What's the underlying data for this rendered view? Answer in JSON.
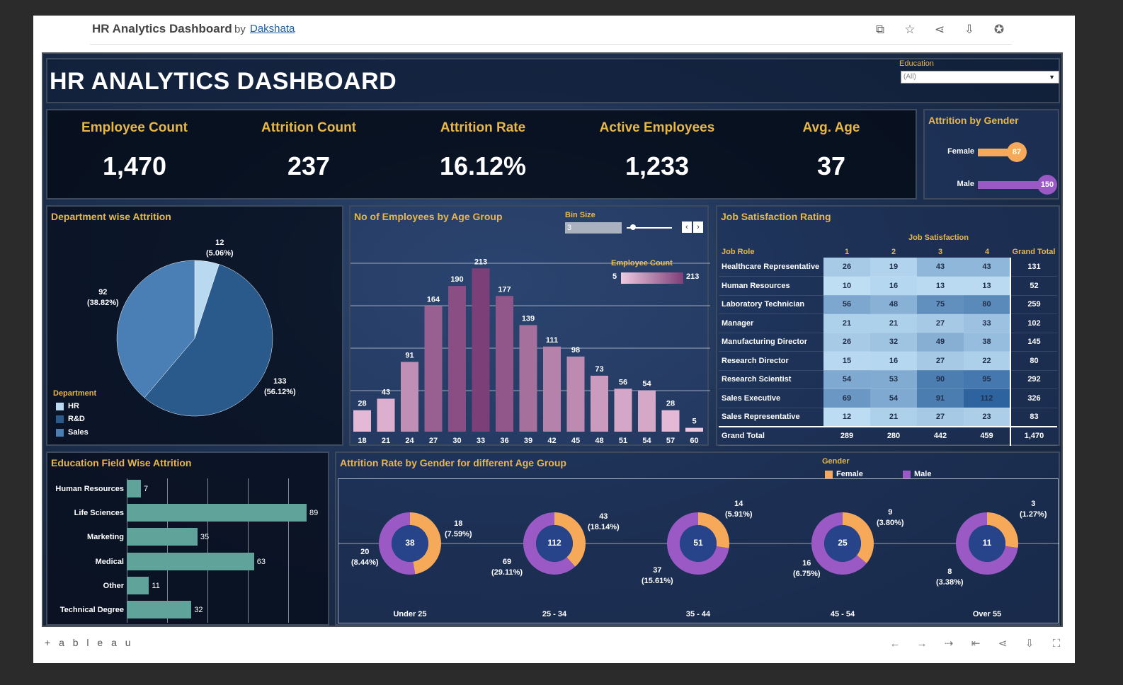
{
  "topbar": {
    "title": "HR Analytics Dashboard",
    "by": "by",
    "author": "Dakshata",
    "icons": [
      "copy-icon",
      "star-icon",
      "share-icon",
      "download-icon",
      "badge-icon"
    ]
  },
  "header": {
    "title": "HR ANALYTICS DASHBOARD",
    "education_label": "Education",
    "education_value": "(All)"
  },
  "kpis": [
    {
      "label": "Employee Count",
      "value": "1,470"
    },
    {
      "label": "Attrition Count",
      "value": "237"
    },
    {
      "label": "Attrition Rate",
      "value": "16.12%"
    },
    {
      "label": "Active Employees",
      "value": "1,233"
    },
    {
      "label": "Avg. Age",
      "value": "37"
    }
  ],
  "gender": {
    "title": "Attrition by Gender",
    "items": [
      {
        "label": "Female",
        "value": "87",
        "color": "#f7a95a"
      },
      {
        "label": "Male",
        "value": "150",
        "color": "#9b59c6"
      }
    ]
  },
  "dept": {
    "title": "Department wise Attrition",
    "legend_title": "Department",
    "legend": [
      {
        "label": "HR",
        "color": "#b8d9f0"
      },
      {
        "label": "R&D",
        "color": "#2a5a8c"
      },
      {
        "label": "Sales",
        "color": "#4a7fb5"
      }
    ],
    "labels": [
      {
        "value": "12",
        "pct": "(5.06%)"
      },
      {
        "value": "92",
        "pct": "(38.82%)"
      },
      {
        "value": "133",
        "pct": "(56.12%)"
      }
    ]
  },
  "age": {
    "title": "No of Employees by Age Group",
    "bin_label": "Bin Size",
    "bin_value": "3",
    "ec_label": "Employee Count",
    "ec_min": "5",
    "ec_max": "213"
  },
  "job": {
    "title": "Job Satisfaction Rating",
    "group_header": "Job Satisfaction",
    "columns": [
      "Job Role",
      "1",
      "2",
      "3",
      "4",
      "Grand Total"
    ],
    "rows": [
      {
        "role": "Healthcare Representative",
        "v": [
          "26",
          "19",
          "43",
          "43"
        ],
        "total": "131"
      },
      {
        "role": "Human Resources",
        "v": [
          "10",
          "16",
          "13",
          "13"
        ],
        "total": "52"
      },
      {
        "role": "Laboratory Technician",
        "v": [
          "56",
          "48",
          "75",
          "80"
        ],
        "total": "259"
      },
      {
        "role": "Manager",
        "v": [
          "21",
          "21",
          "27",
          "33"
        ],
        "total": "102"
      },
      {
        "role": "Manufacturing Director",
        "v": [
          "26",
          "32",
          "49",
          "38"
        ],
        "total": "145"
      },
      {
        "role": "Research Director",
        "v": [
          "15",
          "16",
          "27",
          "22"
        ],
        "total": "80"
      },
      {
        "role": "Research Scientist",
        "v": [
          "54",
          "53",
          "90",
          "95"
        ],
        "total": "292"
      },
      {
        "role": "Sales Executive",
        "v": [
          "69",
          "54",
          "91",
          "112"
        ],
        "total": "326"
      },
      {
        "role": "Sales Representative",
        "v": [
          "12",
          "21",
          "27",
          "23"
        ],
        "total": "83"
      }
    ],
    "grand": {
      "role": "Grand Total",
      "v": [
        "289",
        "280",
        "442",
        "459"
      ],
      "total": "1,470"
    }
  },
  "edu": {
    "title": "Education Field Wise Attrition",
    "items": [
      {
        "label": "Human Resources",
        "value": 7
      },
      {
        "label": "Life Sciences",
        "value": 89
      },
      {
        "label": "Marketing",
        "value": 35
      },
      {
        "label": "Medical",
        "value": 63
      },
      {
        "label": "Other",
        "value": 11
      },
      {
        "label": "Technical Degree",
        "value": 32
      }
    ]
  },
  "arg": {
    "title": "Attrition Rate by Gender for different Age Group",
    "legend_title": "Gender",
    "legend": [
      {
        "label": "Female",
        "color": "#f7a95a"
      },
      {
        "label": "Male",
        "color": "#9b59c6"
      }
    ],
    "groups": [
      {
        "label": "Under 25",
        "total": "38",
        "f": "18",
        "fp": "(7.59%)",
        "m": "20",
        "mp": "(8.44%)"
      },
      {
        "label": "25 - 34",
        "total": "112",
        "f": "43",
        "fp": "(18.14%)",
        "m": "69",
        "mp": "(29.11%)"
      },
      {
        "label": "35 - 44",
        "total": "51",
        "f": "14",
        "fp": "(5.91%)",
        "m": "37",
        "mp": "(15.61%)"
      },
      {
        "label": "45 - 54",
        "total": "25",
        "f": "9",
        "fp": "(3.80%)",
        "m": "16",
        "mp": "(6.75%)"
      },
      {
        "label": "Over 55",
        "total": "11",
        "f": "3",
        "fp": "(1.27%)",
        "m": "8",
        "mp": "(3.38%)"
      }
    ]
  },
  "bottombar": {
    "brand": "+ a b l e a u",
    "icons": [
      "undo-icon",
      "redo-icon",
      "revert-icon",
      "reset-icon",
      "share-icon",
      "download-icon",
      "fullscreen-icon"
    ]
  },
  "chart_data": [
    {
      "type": "pie",
      "title": "Department wise Attrition",
      "categories": [
        "HR",
        "R&D",
        "Sales"
      ],
      "values": [
        12,
        133,
        92
      ]
    },
    {
      "type": "bar",
      "title": "No of Employees by Age Group",
      "categories": [
        "18",
        "21",
        "24",
        "27",
        "30",
        "33",
        "36",
        "39",
        "42",
        "45",
        "48",
        "51",
        "54",
        "57",
        "60"
      ],
      "values": [
        28,
        43,
        91,
        164,
        190,
        213,
        177,
        139,
        111,
        98,
        73,
        56,
        54,
        28,
        5
      ],
      "ylim": [
        0,
        240
      ]
    },
    {
      "type": "bar",
      "title": "Education Field Wise Attrition",
      "categories": [
        "Human Resources",
        "Life Sciences",
        "Marketing",
        "Medical",
        "Other",
        "Technical Degree"
      ],
      "values": [
        7,
        89,
        35,
        63,
        11,
        32
      ]
    },
    {
      "type": "pie",
      "title": "Attrition Rate by Gender for different Age Group",
      "categories": [
        "Under 25",
        "25 - 34",
        "35 - 44",
        "45 - 54",
        "Over 55"
      ],
      "series": [
        {
          "name": "Female",
          "values": [
            18,
            43,
            14,
            9,
            3
          ]
        },
        {
          "name": "Male",
          "values": [
            20,
            69,
            37,
            16,
            8
          ]
        }
      ]
    }
  ]
}
